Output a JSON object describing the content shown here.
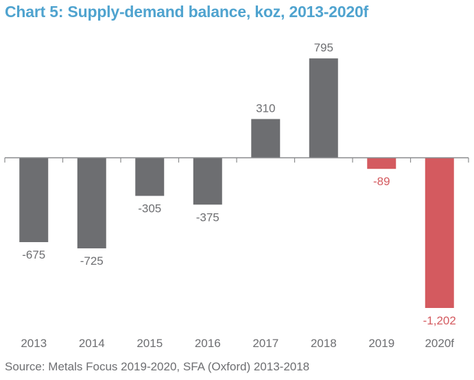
{
  "chart_data": {
    "type": "bar",
    "title": "Chart 5: Supply-demand balance, koz, 2013-2020f",
    "xlabel": "",
    "ylabel": "koz",
    "categories": [
      "2013",
      "2014",
      "2015",
      "2016",
      "2017",
      "2018",
      "2019",
      "2020f"
    ],
    "values": [
      -675,
      -725,
      -305,
      -375,
      310,
      795,
      -89,
      -1202
    ],
    "data_labels": [
      "-675",
      "-725",
      "-305",
      "-375",
      "310",
      "795",
      "-89",
      "-1,202"
    ],
    "ylim": [
      -1202,
      795
    ],
    "grid": false,
    "legend": "none",
    "bar_colors": [
      "#6d6e71",
      "#6d6e71",
      "#6d6e71",
      "#6d6e71",
      "#6d6e71",
      "#6d6e71",
      "#d45a5f",
      "#d45a5f"
    ],
    "label_colors": [
      "#6d6e71",
      "#6d6e71",
      "#6d6e71",
      "#6d6e71",
      "#6d6e71",
      "#6d6e71",
      "#d45a5f",
      "#d45a5f"
    ],
    "source": "Source: Metals Focus 2019-2020, SFA (Oxford) 2013-2018"
  },
  "colors": {
    "title": "#4fa3cf",
    "axis": "#8a8b8d",
    "text": "#6d6e71"
  }
}
